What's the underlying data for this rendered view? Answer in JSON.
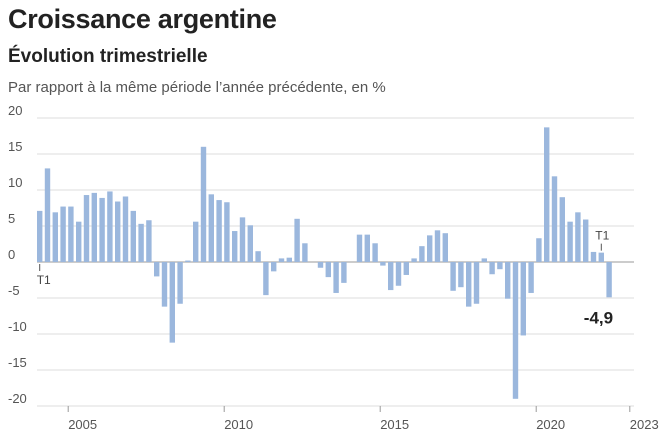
{
  "header": {
    "title": "Croissance argentine",
    "subtitle": "Évolution trimestrielle",
    "note": "Par rapport à la même période l’année précédente, en %"
  },
  "chart_data": {
    "type": "bar",
    "title": "Croissance argentine",
    "subtitle": "Évolution trimestrielle",
    "ylabel": "Par rapport à la même période l’année précédente, en %",
    "ylim": [
      -20,
      20
    ],
    "yticks": [
      20,
      15,
      10,
      5,
      0,
      -5,
      -10,
      -15,
      -20
    ],
    "ytick_labels": [
      "20",
      "15",
      "10",
      "5",
      "0",
      "-5",
      "-10",
      "-15",
      "-20"
    ],
    "grid": true,
    "bar_color": "#9bb7dd",
    "start": "2004 T1",
    "x_labels": [
      {
        "label": "2005",
        "index": 4
      },
      {
        "label": "2010",
        "index": 24
      },
      {
        "label": "2015",
        "index": 44
      },
      {
        "label": "2020",
        "index": 64
      },
      {
        "label": "2023*",
        "index": 76
      }
    ],
    "values": [
      7.1,
      13.0,
      6.9,
      7.7,
      7.7,
      5.6,
      9.3,
      9.6,
      8.9,
      9.8,
      8.4,
      9.1,
      7.1,
      5.3,
      5.8,
      -2.0,
      -6.2,
      -11.2,
      -5.8,
      0.2,
      5.6,
      16.0,
      9.4,
      8.6,
      8.3,
      4.3,
      6.2,
      5.1,
      1.5,
      -4.6,
      -1.3,
      0.5,
      0.6,
      6.0,
      2.6,
      0.0,
      -0.8,
      -2.1,
      -4.3,
      -2.9,
      0.0,
      3.8,
      3.8,
      2.6,
      -0.5,
      -3.9,
      -3.3,
      -1.8,
      0.5,
      2.2,
      3.7,
      4.4,
      4.0,
      -4.0,
      -3.5,
      -6.2,
      -5.8,
      0.5,
      -1.7,
      -1.0,
      -5.1,
      -19.0,
      -10.2,
      -4.3,
      3.3,
      18.7,
      11.9,
      9.0,
      5.6,
      6.9,
      5.9,
      1.4,
      1.3,
      -4.9
    ],
    "annotations": [
      {
        "text": "T1",
        "index": 0,
        "side": "below"
      },
      {
        "text": "T1",
        "index": 72,
        "side": "above"
      },
      {
        "text": "-4,9",
        "index": 73,
        "side": "value"
      }
    ]
  }
}
